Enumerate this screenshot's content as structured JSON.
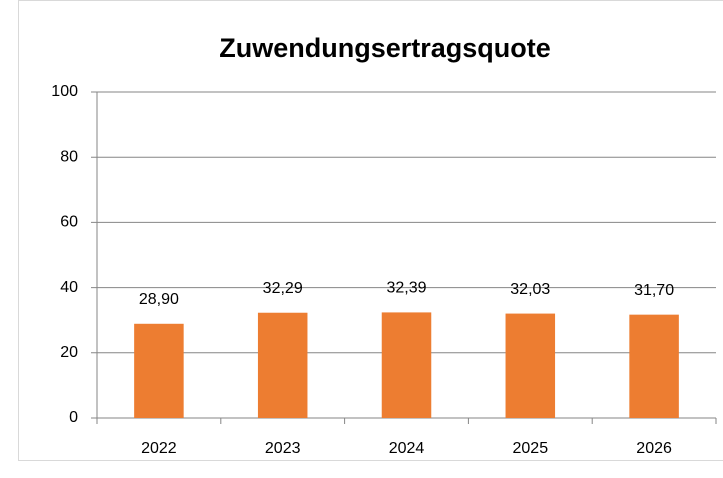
{
  "chart_data": {
    "type": "bar",
    "title": "Zuwendungsertragsquote",
    "categories": [
      "2022",
      "2023",
      "2024",
      "2025",
      "2026"
    ],
    "values": [
      28.9,
      32.29,
      32.39,
      32.03,
      31.7
    ],
    "value_labels": [
      "28,90",
      "32,29",
      "32,39",
      "32,03",
      "31,70"
    ],
    "color": "#ED7D31",
    "ylim": [
      0,
      100
    ],
    "yticks": [
      0,
      20,
      40,
      60,
      80,
      100
    ],
    "grid": true
  }
}
